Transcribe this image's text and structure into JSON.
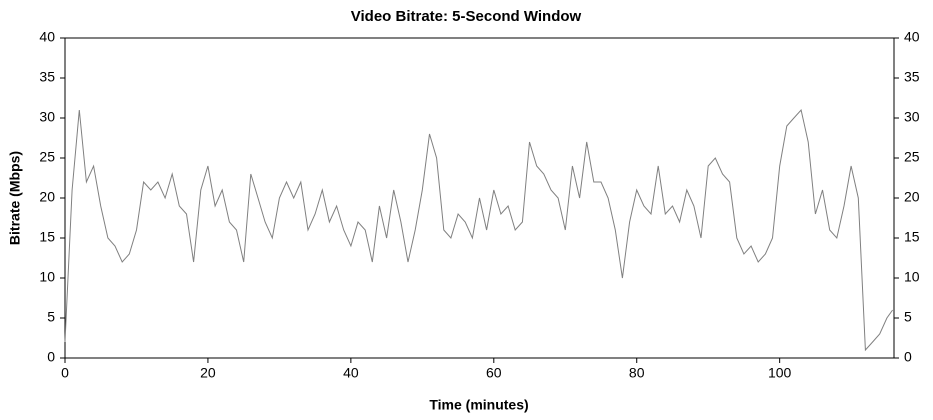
{
  "chart_data": {
    "type": "line",
    "title": "Video Bitrate: 5-Second Window",
    "x_label": "Time (minutes)",
    "y_label": "Bitrate (Mbps)",
    "x": [
      0,
      1,
      2,
      3,
      4,
      5,
      6,
      7,
      8,
      9,
      10,
      11,
      12,
      13,
      14,
      15,
      16,
      17,
      18,
      19,
      20,
      21,
      22,
      23,
      24,
      25,
      26,
      27,
      28,
      29,
      30,
      31,
      32,
      33,
      34,
      35,
      36,
      37,
      38,
      39,
      40,
      41,
      42,
      43,
      44,
      45,
      46,
      47,
      48,
      49,
      50,
      51,
      52,
      53,
      54,
      55,
      56,
      57,
      58,
      59,
      60,
      61,
      62,
      63,
      64,
      65,
      66,
      67,
      68,
      69,
      70,
      71,
      72,
      73,
      74,
      75,
      76,
      77,
      78,
      79,
      80,
      81,
      82,
      83,
      84,
      85,
      86,
      87,
      88,
      89,
      90,
      91,
      92,
      93,
      94,
      95,
      96,
      97,
      98,
      99,
      100,
      101,
      102,
      103,
      104,
      105,
      106,
      107,
      108,
      109,
      110,
      111,
      112,
      113,
      114,
      115,
      115.8
    ],
    "series": [
      {
        "name": "Bitrate",
        "color": "#808080",
        "values": [
          2,
          21,
          31,
          22,
          24,
          19,
          15,
          14,
          12,
          13,
          16,
          22,
          21,
          22,
          20,
          23,
          19,
          18,
          12,
          21,
          24,
          19,
          21,
          17,
          16,
          12,
          23,
          20,
          17,
          15,
          20,
          22,
          20,
          22,
          16,
          18,
          21,
          17,
          19,
          16,
          14,
          17,
          16,
          12,
          19,
          15,
          21,
          17,
          12,
          16,
          21,
          28,
          25,
          16,
          15,
          18,
          17,
          15,
          20,
          16,
          21,
          18,
          19,
          16,
          17,
          27,
          24,
          23,
          21,
          20,
          16,
          24,
          20,
          27,
          22,
          22,
          20,
          16,
          10,
          17,
          21,
          19,
          18,
          24,
          18,
          19,
          17,
          21,
          19,
          15,
          24,
          25,
          23,
          22,
          15,
          13,
          14,
          12,
          13,
          15,
          24,
          29,
          30,
          31,
          27,
          18,
          21,
          16,
          15,
          19,
          24,
          20,
          1,
          2,
          3,
          5,
          6
        ]
      }
    ],
    "xlim": [
      0,
      116
    ],
    "ylim": [
      0,
      40
    ],
    "y2lim": [
      0,
      40
    ],
    "xticks": [
      0,
      20,
      40,
      60,
      80,
      100
    ],
    "yticks": [
      0,
      5,
      10,
      15,
      20,
      25,
      30,
      35,
      40
    ],
    "y2ticks": [
      0,
      5,
      10,
      15,
      20,
      25,
      30,
      35,
      40
    ]
  }
}
